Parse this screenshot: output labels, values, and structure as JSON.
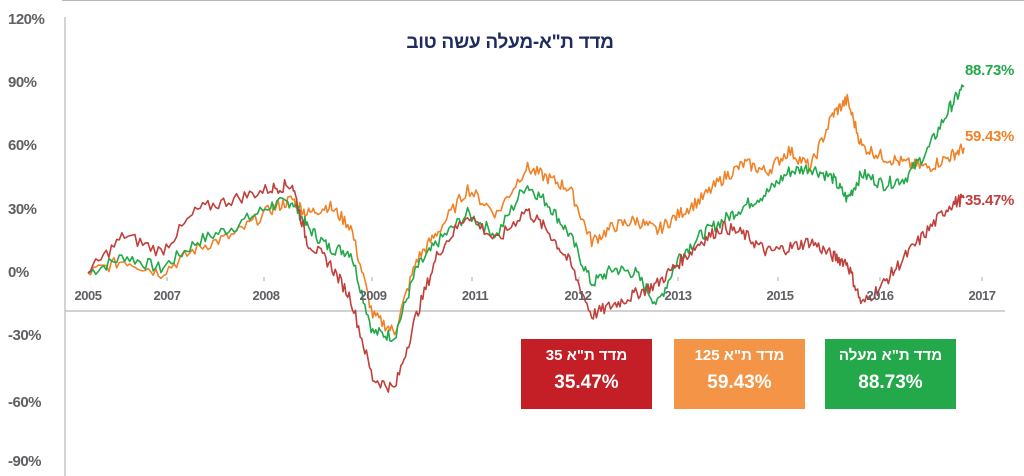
{
  "chart_data": {
    "type": "line",
    "title": "מדד ת\"א-מעלה עשה טוב",
    "xlabel": "",
    "ylabel": "",
    "ylim": [
      -90,
      120
    ],
    "y_ticks": [
      "120%",
      "90%",
      "60%",
      "30%",
      "0%",
      "-30%",
      "-60%",
      "-90%"
    ],
    "x_ticks": [
      "2005",
      "2007",
      "2008",
      "2009",
      "2011",
      "2012",
      "2013",
      "2015",
      "2016",
      "2017"
    ],
    "grid": false,
    "legend_position": "bottom-right boxes",
    "x": [
      2005.0,
      2005.5,
      2006.0,
      2006.5,
      2007.0,
      2007.5,
      2007.8,
      2008.0,
      2008.3,
      2008.6,
      2008.9,
      2009.2,
      2009.5,
      2009.8,
      2010.2,
      2010.6,
      2011.0,
      2011.3,
      2011.6,
      2011.9,
      2012.2,
      2012.5,
      2012.8,
      2013.1,
      2013.4,
      2013.7,
      2014.0,
      2014.3,
      2014.6,
      2014.9,
      2015.2,
      2015.4,
      2015.6,
      2015.9,
      2016.2,
      2016.5,
      2016.8,
      2017.0
    ],
    "series": [
      {
        "name": "מדד ת\"א מעלה",
        "color": "#23a84a",
        "final_value": "88.73%",
        "values": [
          0,
          8,
          2,
          15,
          22,
          32,
          34,
          22,
          12,
          10,
          -28,
          -30,
          2,
          15,
          28,
          18,
          42,
          33,
          18,
          -5,
          2,
          0,
          -15,
          8,
          18,
          25,
          32,
          38,
          48,
          50,
          45,
          35,
          47,
          42,
          45,
          58,
          78,
          88.73
        ]
      },
      {
        "name": "מדד ת\"א 125",
        "color": "#f08228",
        "final_value": "59.43%",
        "values": [
          0,
          6,
          0,
          12,
          18,
          30,
          35,
          28,
          32,
          22,
          -20,
          -28,
          6,
          20,
          40,
          28,
          50,
          45,
          40,
          15,
          22,
          25,
          20,
          28,
          35,
          45,
          52,
          48,
          58,
          50,
          75,
          82,
          60,
          55,
          52,
          50,
          55,
          59.43
        ]
      },
      {
        "name": "מדד ת\"א 35",
        "color": "#c0403c",
        "final_value": "35.47%",
        "values": [
          0,
          18,
          10,
          30,
          35,
          40,
          42,
          15,
          5,
          -12,
          -50,
          -55,
          -20,
          10,
          28,
          15,
          30,
          20,
          5,
          -20,
          -15,
          -10,
          -5,
          5,
          15,
          22,
          18,
          10,
          12,
          15,
          8,
          5,
          -15,
          -5,
          8,
          20,
          32,
          35.47
        ]
      }
    ]
  },
  "title": "מדד ת\"א-מעלה עשה טוב",
  "y_axis_labels": [
    "120%",
    "90%",
    "60%",
    "30%",
    "0%",
    "-30%",
    "-60%",
    "-90%"
  ],
  "x_axis_labels": [
    "2005",
    "2007",
    "2008",
    "2009",
    "2011",
    "2012",
    "2013",
    "2015",
    "2016",
    "2017"
  ],
  "end_labels": {
    "green": "88.73%",
    "orange": "59.43%",
    "red": "35.47%"
  },
  "boxes": [
    {
      "name": "מדד ת\"א 35",
      "value": "35.47%",
      "color": "#c41e27"
    },
    {
      "name": "מדד ת\"א 125",
      "value": "59.43%",
      "color": "#f49446"
    },
    {
      "name": "מדד ת\"א מעלה",
      "value": "88.73%",
      "color": "#23a84a"
    }
  ],
  "colors": {
    "axis_text": "#5f5f64",
    "title": "#1f2b5e",
    "axis_line": "#b8b8b8"
  }
}
